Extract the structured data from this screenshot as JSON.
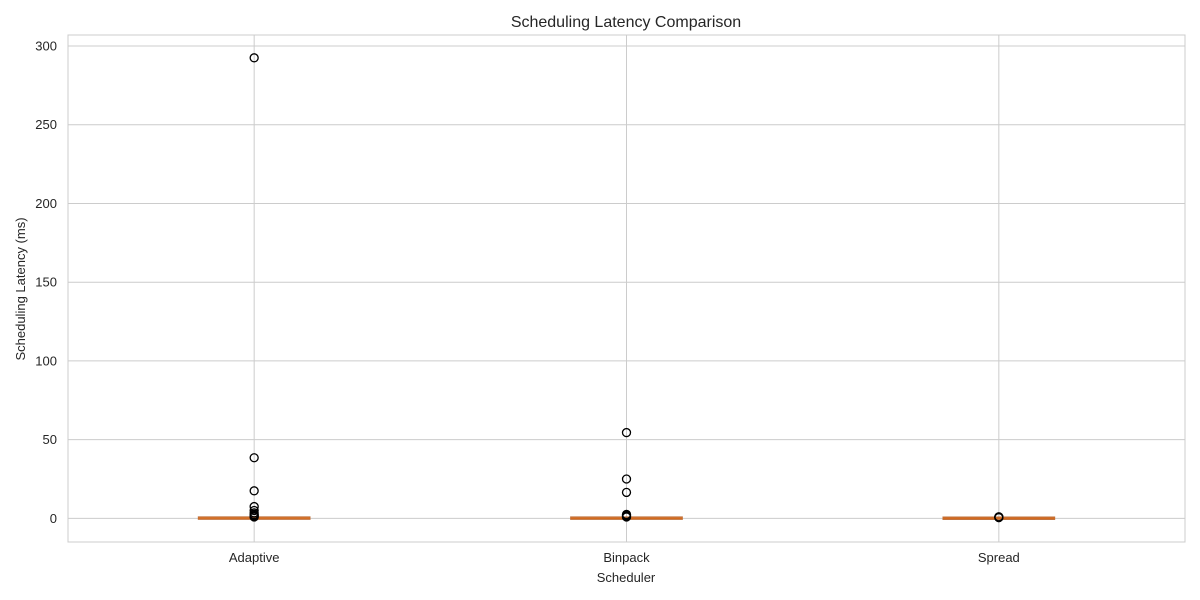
{
  "chart_data": {
    "type": "box",
    "title": "Scheduling Latency Comparison",
    "xlabel": "Scheduler",
    "ylabel": "Scheduling Latency (ms)",
    "categories": [
      "Adaptive",
      "Binpack",
      "Spread"
    ],
    "ylim": [
      -15,
      307
    ],
    "yticks": [
      0,
      50,
      100,
      150,
      200,
      250,
      300
    ],
    "grid": true,
    "boxes": [
      {
        "name": "Adaptive",
        "whisker_low": 0.0,
        "q1": 0.05,
        "median": 0.15,
        "q3": 0.3,
        "whisker_high": 0.6,
        "outliers": [
          292.5,
          38.5,
          17.5,
          7.5,
          5.0,
          3.5,
          2.5,
          1.8,
          1.2,
          0.9
        ]
      },
      {
        "name": "Binpack",
        "whisker_low": 0.0,
        "q1": 0.05,
        "median": 0.12,
        "q3": 0.25,
        "whisker_high": 0.5,
        "outliers": [
          54.5,
          25.0,
          16.5,
          2.5,
          1.8,
          1.2,
          0.9
        ]
      },
      {
        "name": "Spread",
        "whisker_low": 0.0,
        "q1": 0.03,
        "median": 0.08,
        "q3": 0.15,
        "whisker_high": 0.3,
        "outliers": [
          1.0,
          0.8,
          0.6,
          0.5
        ]
      }
    ],
    "colors": {
      "box_fill": "#e8a06a",
      "box_edge": "#c0733e",
      "median": "#d2691e",
      "outlier_edge": "#000000",
      "grid": "#cccccc"
    }
  }
}
